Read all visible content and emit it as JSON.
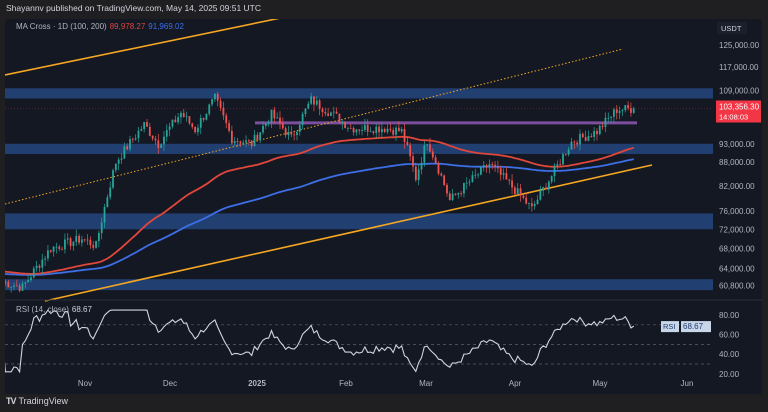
{
  "header": {
    "published": "Shayannv published on TradingView.com, May 14, 2025 09:51 UTC"
  },
  "indicator": {
    "label": "MA Cross · 1D (100, 200)",
    "ma100": "89,978.27",
    "ma200": "91,969.02",
    "ma100_color": "#e0473a",
    "ma200_color": "#3d6fe6"
  },
  "currency": "USDT",
  "price_axis": {
    "scale": "log",
    "ticks": [
      "125,000.00",
      "117,000.00",
      "109,000.00",
      "93,000.00",
      "88,000.00",
      "82,000.00",
      "76,000.00",
      "72,000.00",
      "68,000.00",
      "64,000.00",
      "60,800.00"
    ],
    "tick_values": [
      125000,
      117000,
      109000,
      93000,
      88000,
      82000,
      76000,
      72000,
      68000,
      64000,
      60800
    ],
    "last_price": "103,356.30",
    "countdown": "14:08:03",
    "last_price_color": "#f23645"
  },
  "time_axis": [
    "Nov",
    "Dec",
    "2025",
    "Feb",
    "Mar",
    "Apr",
    "May",
    "Jun"
  ],
  "rsi": {
    "label": "RSI (14, close)",
    "value": "68.67",
    "badge": "RSI",
    "ticks": [
      "80.00",
      "60.00",
      "40.00",
      "20.00"
    ],
    "tick_values": [
      80,
      60,
      40,
      20
    ],
    "levels": [
      70,
      50,
      30
    ]
  },
  "chart_data": {
    "type": "candlestick",
    "symbol_quote": "USDT",
    "price_keypoints": [
      [
        "2024-10-03",
        61500
      ],
      [
        "2024-10-10",
        60500
      ],
      [
        "2024-10-20",
        68000
      ],
      [
        "2024-10-31",
        70000
      ],
      [
        "2024-11-05",
        68500
      ],
      [
        "2024-11-12",
        88000
      ],
      [
        "2024-11-22",
        98500
      ],
      [
        "2024-11-27",
        93000
      ],
      [
        "2024-12-05",
        102000
      ],
      [
        "2024-12-10",
        97000
      ],
      [
        "2024-12-17",
        106500
      ],
      [
        "2024-12-23",
        94500
      ],
      [
        "2024-12-30",
        93000
      ],
      [
        "2025-01-06",
        101500
      ],
      [
        "2025-01-13",
        94500
      ],
      [
        "2025-01-20",
        106000
      ],
      [
        "2025-01-27",
        102000
      ],
      [
        "2025-02-03",
        97500
      ],
      [
        "2025-02-15",
        97500
      ],
      [
        "2025-02-21",
        96500
      ],
      [
        "2025-02-26",
        84000
      ],
      [
        "2025-03-02",
        94000
      ],
      [
        "2025-03-10",
        78500
      ],
      [
        "2025-03-24",
        87500
      ],
      [
        "2025-03-31",
        82500
      ],
      [
        "2025-04-08",
        76500
      ],
      [
        "2025-04-15",
        84500
      ],
      [
        "2025-04-22",
        93500
      ],
      [
        "2025-05-01",
        96500
      ],
      [
        "2025-05-08",
        103000
      ],
      [
        "2025-05-14",
        103356
      ]
    ],
    "zones": [
      [
        106500,
        109800
      ],
      [
        90200,
        93000
      ],
      [
        72000,
        75500
      ],
      [
        60000,
        62000
      ]
    ],
    "resistance_line": 99000,
    "zone_color": "#24467f"
  },
  "footer": {
    "logo": "TradingView"
  }
}
